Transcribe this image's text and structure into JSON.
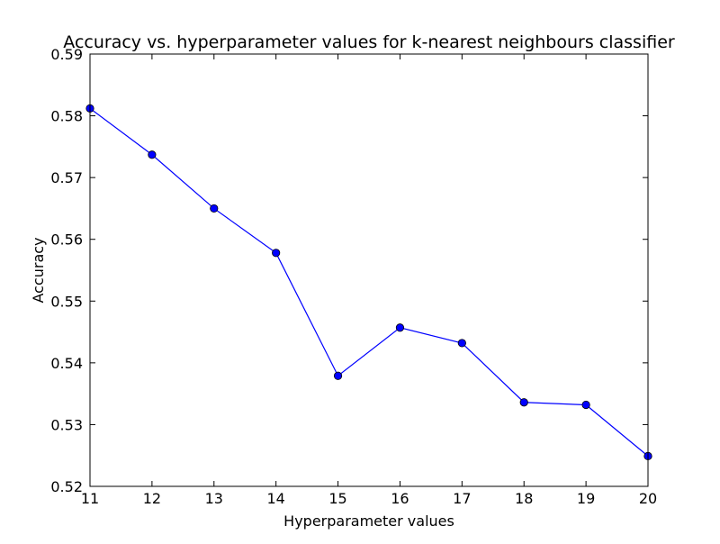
{
  "chart_data": {
    "type": "line",
    "title": "Accuracy vs. hyperparameter values for k-nearest neighbours classifier",
    "xlabel": "Hyperparameter values",
    "ylabel": "Accuracy",
    "xlim": [
      11,
      20
    ],
    "ylim": [
      0.52,
      0.59
    ],
    "x_ticks": [
      "11",
      "12",
      "13",
      "14",
      "15",
      "16",
      "17",
      "18",
      "19",
      "20"
    ],
    "y_ticks": [
      "0.52",
      "0.53",
      "0.54",
      "0.55",
      "0.56",
      "0.57",
      "0.58",
      "0.59"
    ],
    "x": [
      11,
      12,
      13,
      14,
      15,
      16,
      17,
      18,
      19,
      20
    ],
    "series": [
      {
        "values": [
          0.5812,
          0.5737,
          0.565,
          0.5578,
          0.5379,
          0.5457,
          0.5432,
          0.5336,
          0.5332,
          0.5249
        ],
        "color": "#0000ff",
        "marker": "circle"
      }
    ],
    "grid": false,
    "legend": "none"
  }
}
